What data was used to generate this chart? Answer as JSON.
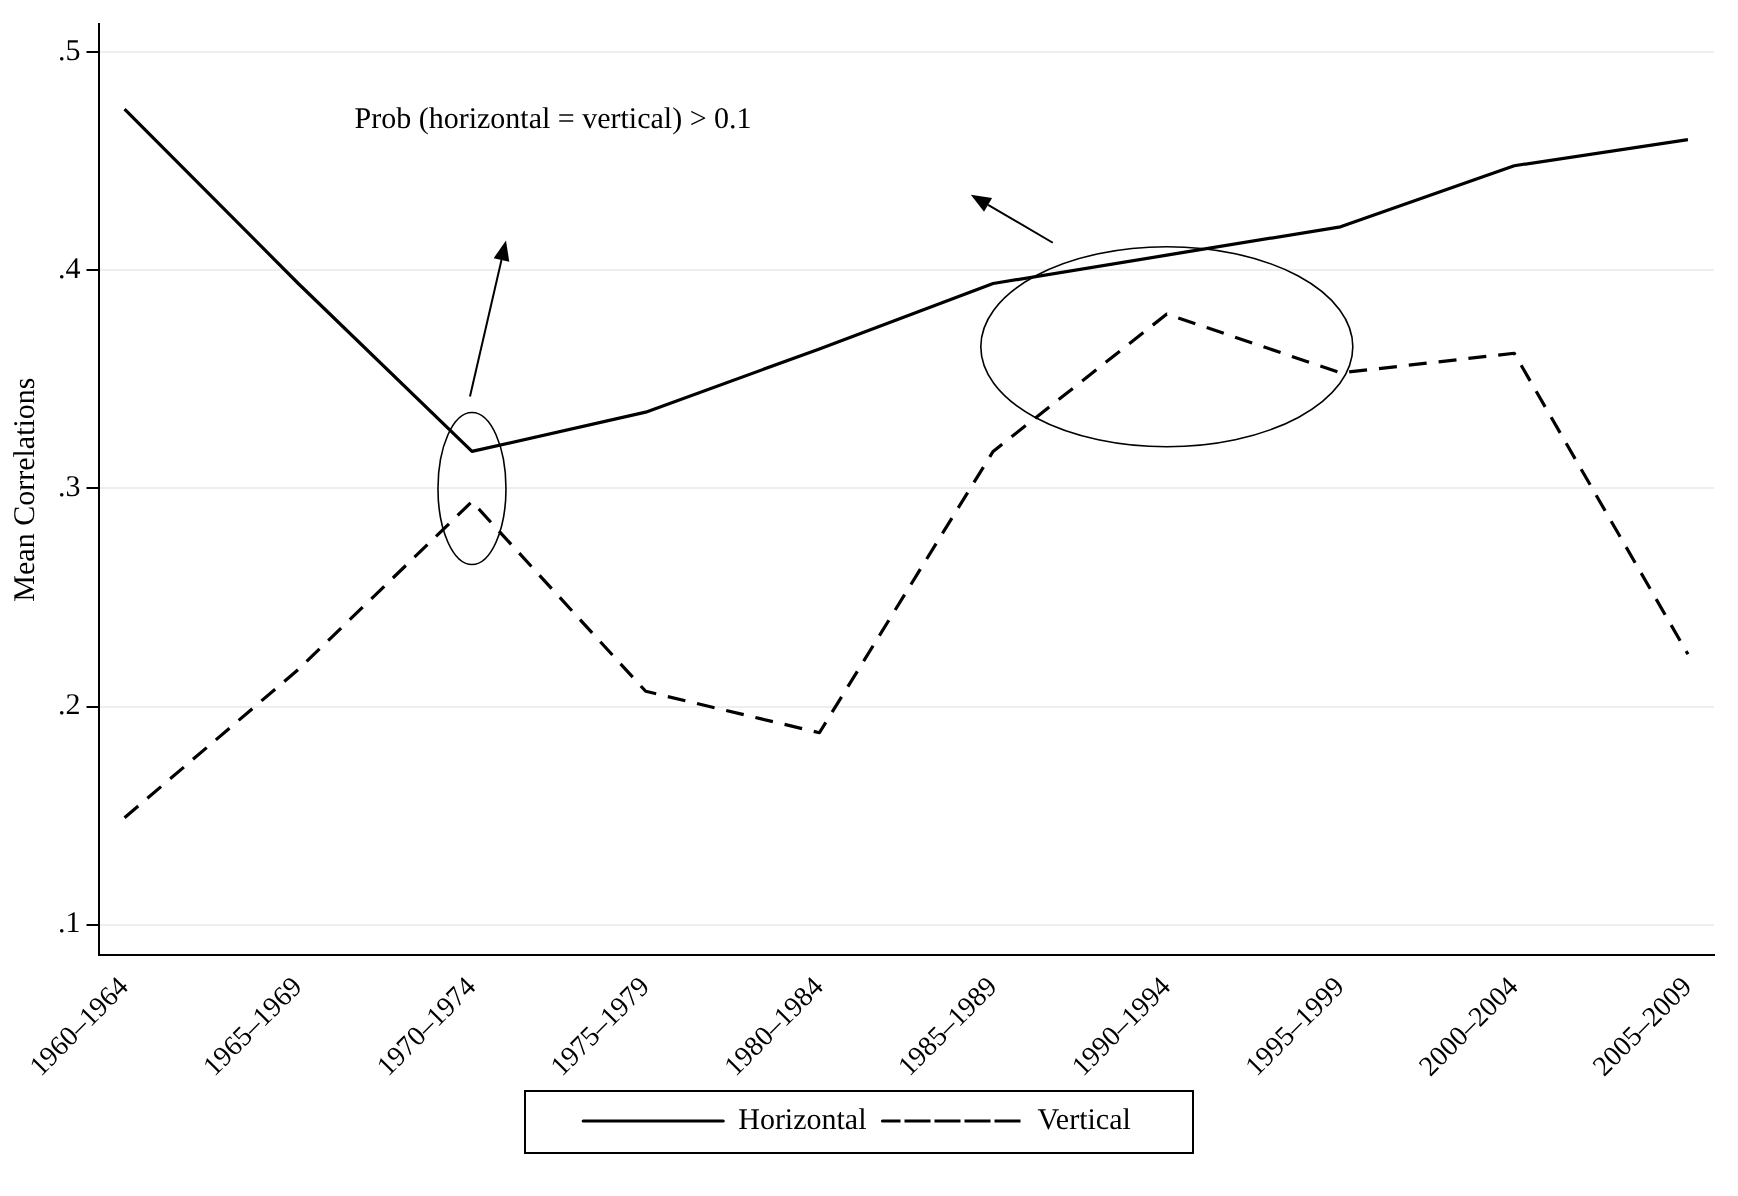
{
  "chart_data": {
    "type": "line",
    "ylabel": "Mean Correlations",
    "categories": [
      "1960–1964",
      "1965–1969",
      "1970–1974",
      "1975–1979",
      "1980–1984",
      "1985–1989",
      "1990–1994",
      "1995–1999",
      "2000–2004",
      "2005–2009"
    ],
    "series": [
      {
        "name": "Horizontal",
        "color": "#000000",
        "line_style": "solid",
        "values": [
          0.474,
          0.394,
          0.317,
          0.335,
          0.364,
          0.394,
          0.407,
          0.42,
          0.448,
          0.46
        ]
      },
      {
        "name": "Vertical",
        "color": "#000000",
        "line_style": "dashed",
        "values": [
          0.149,
          0.217,
          0.294,
          0.207,
          0.188,
          0.317,
          0.38,
          0.353,
          0.362,
          0.224
        ]
      }
    ],
    "ylim": [
      0.086,
      0.513
    ],
    "yticks": [
      {
        "value": 0.1,
        "label": ".1"
      },
      {
        "value": 0.2,
        "label": ".2"
      },
      {
        "value": 0.3,
        "label": ".3"
      },
      {
        "value": 0.4,
        "label": ".4"
      },
      {
        "value": 0.5,
        "label": ".5"
      }
    ],
    "grid": "y",
    "legend": "bottom",
    "marker": "none",
    "annotations": [
      "Prob (horizontal = vertical) > 0.1"
    ]
  }
}
